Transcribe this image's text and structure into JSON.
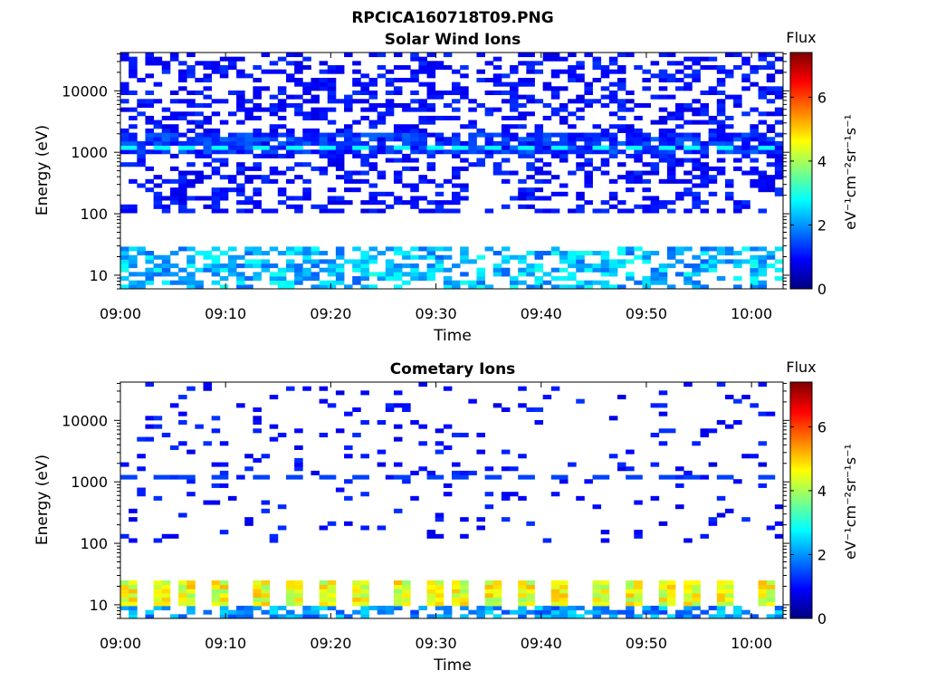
{
  "figure": {
    "title": "RPCICA160718T09.PNG"
  },
  "chart_data": [
    {
      "type": "heatmap",
      "title": "Solar Wind Ions",
      "xlabel": "Time",
      "ylabel": "Energy (eV)",
      "yscale": "log",
      "ylim": [
        6,
        42000
      ],
      "xlim": [
        "09:00",
        "10:03"
      ],
      "x_ticks": [
        "09:00",
        "09:10",
        "09:20",
        "09:30",
        "09:40",
        "09:50",
        "10:00"
      ],
      "y_ticks": [
        "10",
        "100",
        "1000",
        "10000"
      ],
      "colorbar": {
        "label": "Flux",
        "unit": "eV⁻¹cm⁻²sr⁻¹s⁻¹",
        "range": [
          0,
          7.4
        ],
        "ticks": [
          "0",
          "2",
          "4",
          "6"
        ],
        "colormap": "jet"
      },
      "features": [
        {
          "description": "broad diffuse flux",
          "energy_range_eV": [
            100,
            40000
          ],
          "time_range": [
            "09:00",
            "10:03"
          ],
          "flux": 1.0
        },
        {
          "description": "dense band",
          "energy_range_eV": [
            1000,
            2000
          ],
          "time_range": [
            "09:00",
            "10:03"
          ],
          "flux": 1.3
        },
        {
          "description": "periodic peaks",
          "energy_eV": 1150,
          "flux": 2.8,
          "times": [
            "09:01",
            "09:04",
            "09:07",
            "09:10",
            "09:14",
            "09:17",
            "09:20",
            "09:23",
            "09:27",
            "09:30",
            "09:33",
            "09:36",
            "09:39",
            "09:42",
            "09:46",
            "09:49",
            "09:52",
            "09:55",
            "09:58",
            "10:02"
          ]
        },
        {
          "description": "low-energy flux",
          "energy_range_eV": [
            6,
            30
          ],
          "time_range": [
            "09:00",
            "10:03"
          ],
          "flux": 2.3
        }
      ]
    },
    {
      "type": "heatmap",
      "title": "Cometary Ions",
      "xlabel": "Time",
      "ylabel": "Energy (eV)",
      "yscale": "log",
      "ylim": [
        6,
        42000
      ],
      "xlim": [
        "09:00",
        "10:03"
      ],
      "x_ticks": [
        "09:00",
        "09:10",
        "09:20",
        "09:30",
        "09:40",
        "09:50",
        "10:00"
      ],
      "y_ticks": [
        "10",
        "100",
        "1000",
        "10000"
      ],
      "colorbar": {
        "label": "Flux",
        "unit": "eV⁻¹cm⁻²sr⁻¹s⁻¹",
        "range": [
          0,
          7.4
        ],
        "ticks": [
          "0",
          "2",
          "4",
          "6"
        ],
        "colormap": "jet"
      },
      "features": [
        {
          "description": "sparse flux",
          "energy_range_eV": [
            100,
            40000
          ],
          "time_range": [
            "09:00",
            "10:03"
          ],
          "flux": 1.0
        },
        {
          "description": "periodic peaks",
          "energy_eV": 1150,
          "flux": 1.4,
          "times": [
            "09:01",
            "09:04",
            "09:07",
            "09:10",
            "09:14",
            "09:17",
            "09:20",
            "09:23",
            "09:27",
            "09:30",
            "09:33",
            "09:36",
            "09:39",
            "09:42",
            "09:46",
            "09:49",
            "09:52",
            "09:55",
            "09:58",
            "10:02"
          ]
        },
        {
          "description": "periodic low-energy bursts",
          "energy_range_eV": [
            10,
            25
          ],
          "flux": 4.5,
          "times": [
            "09:01",
            "09:04",
            "09:07",
            "09:10",
            "09:14",
            "09:17",
            "09:20",
            "09:23",
            "09:27",
            "09:30",
            "09:33",
            "09:36",
            "09:39",
            "09:42",
            "09:46",
            "09:49",
            "09:52",
            "09:55",
            "09:58",
            "10:02"
          ]
        },
        {
          "description": "low-energy background",
          "energy_range_eV": [
            6,
            10
          ],
          "time_range": [
            "09:00",
            "10:03"
          ],
          "flux": 2.0
        }
      ]
    }
  ]
}
